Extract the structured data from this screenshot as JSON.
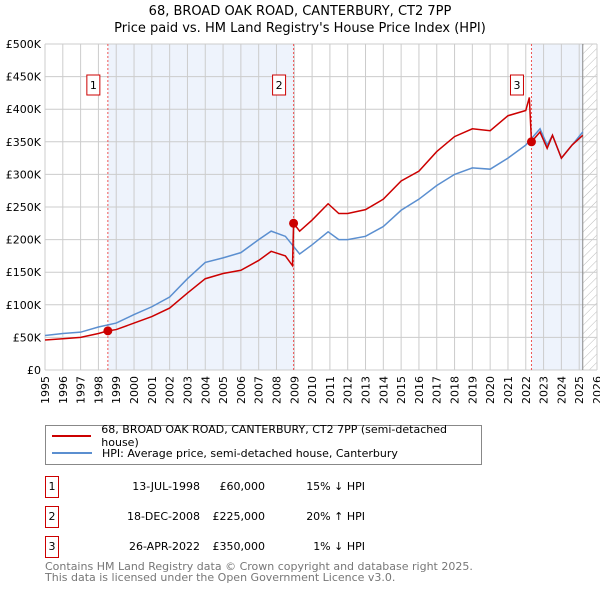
{
  "chart_data": {
    "type": "line",
    "title": "68, BROAD OAK ROAD, CANTERBURY, CT2 7PP",
    "subtitle": "Price paid vs. HM Land Registry's House Price Index (HPI)",
    "xlim": [
      1995,
      2026
    ],
    "ylim": [
      0,
      500000
    ],
    "y_ticks": [
      {
        "v": 0,
        "label": "£0"
      },
      {
        "v": 50000,
        "label": "£50K"
      },
      {
        "v": 100000,
        "label": "£100K"
      },
      {
        "v": 150000,
        "label": "£150K"
      },
      {
        "v": 200000,
        "label": "£200K"
      },
      {
        "v": 250000,
        "label": "£250K"
      },
      {
        "v": 300000,
        "label": "£300K"
      },
      {
        "v": 350000,
        "label": "£350K"
      },
      {
        "v": 400000,
        "label": "£400K"
      },
      {
        "v": 450000,
        "label": "£450K"
      },
      {
        "v": 500000,
        "label": "£500K"
      }
    ],
    "x_ticks": [
      "1995",
      "1996",
      "1997",
      "1998",
      "1999",
      "2000",
      "2001",
      "2002",
      "2003",
      "2004",
      "2005",
      "2006",
      "2007",
      "2008",
      "2009",
      "2010",
      "2011",
      "2012",
      "2013",
      "2014",
      "2015",
      "2016",
      "2017",
      "2018",
      "2019",
      "2020",
      "2021",
      "2022",
      "2023",
      "2024",
      "2025",
      "2026"
    ],
    "grid": true,
    "series": [
      {
        "name": "68, BROAD OAK ROAD, CANTERBURY, CT2 7PP (semi-detached house)",
        "color": "#cc0000",
        "x": [
          1995,
          1996,
          1997,
          1998,
          1998.53,
          1999,
          2000,
          2001,
          2002,
          2003,
          2004,
          2005,
          2006,
          2007,
          2007.7,
          2008.5,
          2008.9,
          2008.96,
          2009.3,
          2010,
          2010.9,
          2011.5,
          2012,
          2013,
          2014,
          2015,
          2016,
          2017,
          2018,
          2019,
          2020,
          2021,
          2022,
          2022.2,
          2022.32,
          2022.8,
          2023.2,
          2023.5,
          2024,
          2024.6,
          2025.2
        ],
        "y": [
          46000,
          48000,
          50000,
          56000,
          60000,
          62000,
          72000,
          82000,
          95000,
          118000,
          140000,
          148000,
          153000,
          168000,
          182000,
          175000,
          160000,
          225000,
          213000,
          230000,
          255000,
          240000,
          240000,
          246000,
          262000,
          290000,
          305000,
          335000,
          358000,
          370000,
          367000,
          390000,
          398000,
          418000,
          350000,
          365000,
          340000,
          360000,
          325000,
          345000,
          360000
        ]
      },
      {
        "name": "HPI: Average price, semi-detached house, Canterbury",
        "color": "#5b8fd0",
        "x": [
          1995,
          1996,
          1997,
          1998,
          1999,
          2000,
          2001,
          2002,
          2003,
          2004,
          2005,
          2006,
          2007,
          2007.7,
          2008.5,
          2009.3,
          2010,
          2010.9,
          2011.5,
          2012,
          2013,
          2014,
          2015,
          2016,
          2017,
          2018,
          2019,
          2020,
          2021,
          2022,
          2022.8,
          2023.2,
          2023.5,
          2024,
          2024.6,
          2025.2
        ],
        "y": [
          53000,
          56000,
          58000,
          66000,
          72000,
          85000,
          97000,
          112000,
          140000,
          165000,
          172000,
          180000,
          200000,
          213000,
          205000,
          178000,
          192000,
          212000,
          200000,
          200000,
          205000,
          220000,
          245000,
          262000,
          283000,
          300000,
          310000,
          308000,
          325000,
          345000,
          370000,
          345000,
          360000,
          325000,
          345000,
          365000
        ]
      }
    ],
    "sales": [
      {
        "label": "1",
        "x": 1998.53,
        "y": 60000,
        "date": "13-JUL-1998",
        "price": "£60,000",
        "hpi": "15% ↓ HPI"
      },
      {
        "label": "2",
        "x": 2008.96,
        "y": 225000,
        "date": "18-DEC-2008",
        "price": "£225,000",
        "hpi": "20% ↑ HPI"
      },
      {
        "label": "3",
        "x": 2022.32,
        "y": 350000,
        "date": "26-APR-2022",
        "price": "£350,000",
        "hpi": "1% ↓ HPI"
      }
    ],
    "shaded_periods": [
      [
        1998.53,
        2008.96
      ],
      [
        2022.32,
        2025.2
      ]
    ],
    "forecast_from": 2025.2
  },
  "footer": [
    "Contains HM Land Registry data © Crown copyright and database right 2025.",
    "This data is licensed under the Open Government Licence v3.0."
  ]
}
